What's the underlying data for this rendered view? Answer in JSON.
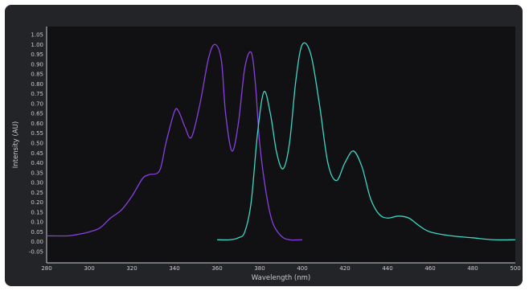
{
  "chart_data": {
    "type": "line",
    "title": "",
    "xlabel": "Wavelength (nm)",
    "ylabel": "Intensity (AU)",
    "xlim": [
      280,
      500
    ],
    "ylim": [
      -0.05,
      1.05
    ],
    "x_ticks": [
      280,
      300,
      320,
      340,
      360,
      380,
      400,
      420,
      440,
      460,
      480,
      500
    ],
    "y_ticks": [
      "1.05",
      "1.00",
      "0.95",
      "0.90",
      "0.85",
      "0.80",
      "0.75",
      "0.70",
      "0.65",
      "0.60",
      "0.55",
      "0.50",
      "0.45",
      "0.40",
      "0.35",
      "0.30",
      "0.25",
      "0.20",
      "0.15",
      "0.10",
      "0.05",
      "0.00",
      "-0.05"
    ],
    "grid": false,
    "legend": "none",
    "series": [
      {
        "color": "#8a3fe0",
        "x": [
          280,
          290,
          296,
          300,
          305,
          310,
          315,
          320,
          325,
          328,
          333,
          336,
          340,
          342,
          345,
          348,
          352,
          356,
          359,
          362,
          364,
          367,
          370,
          373,
          376,
          378,
          380,
          383,
          386,
          390,
          394,
          400
        ],
        "y": [
          0.03,
          0.03,
          0.04,
          0.05,
          0.07,
          0.12,
          0.16,
          0.23,
          0.32,
          0.34,
          0.36,
          0.5,
          0.66,
          0.66,
          0.58,
          0.53,
          0.7,
          0.93,
          1.0,
          0.92,
          0.65,
          0.46,
          0.6,
          0.88,
          0.96,
          0.8,
          0.5,
          0.25,
          0.1,
          0.03,
          0.01,
          0.01
        ]
      },
      {
        "color": "#3ed6c4",
        "x": [
          360,
          366,
          370,
          373,
          376,
          379,
          382,
          385,
          388,
          391,
          394,
          397,
          400,
          404,
          408,
          412,
          416,
          420,
          424,
          428,
          432,
          436,
          440,
          445,
          450,
          455,
          460,
          470,
          480,
          490,
          500
        ],
        "y": [
          0.01,
          0.01,
          0.02,
          0.05,
          0.2,
          0.55,
          0.76,
          0.65,
          0.45,
          0.37,
          0.5,
          0.82,
          1.0,
          0.95,
          0.7,
          0.4,
          0.31,
          0.4,
          0.46,
          0.38,
          0.22,
          0.14,
          0.12,
          0.13,
          0.12,
          0.08,
          0.05,
          0.03,
          0.02,
          0.01,
          0.01
        ]
      }
    ]
  }
}
